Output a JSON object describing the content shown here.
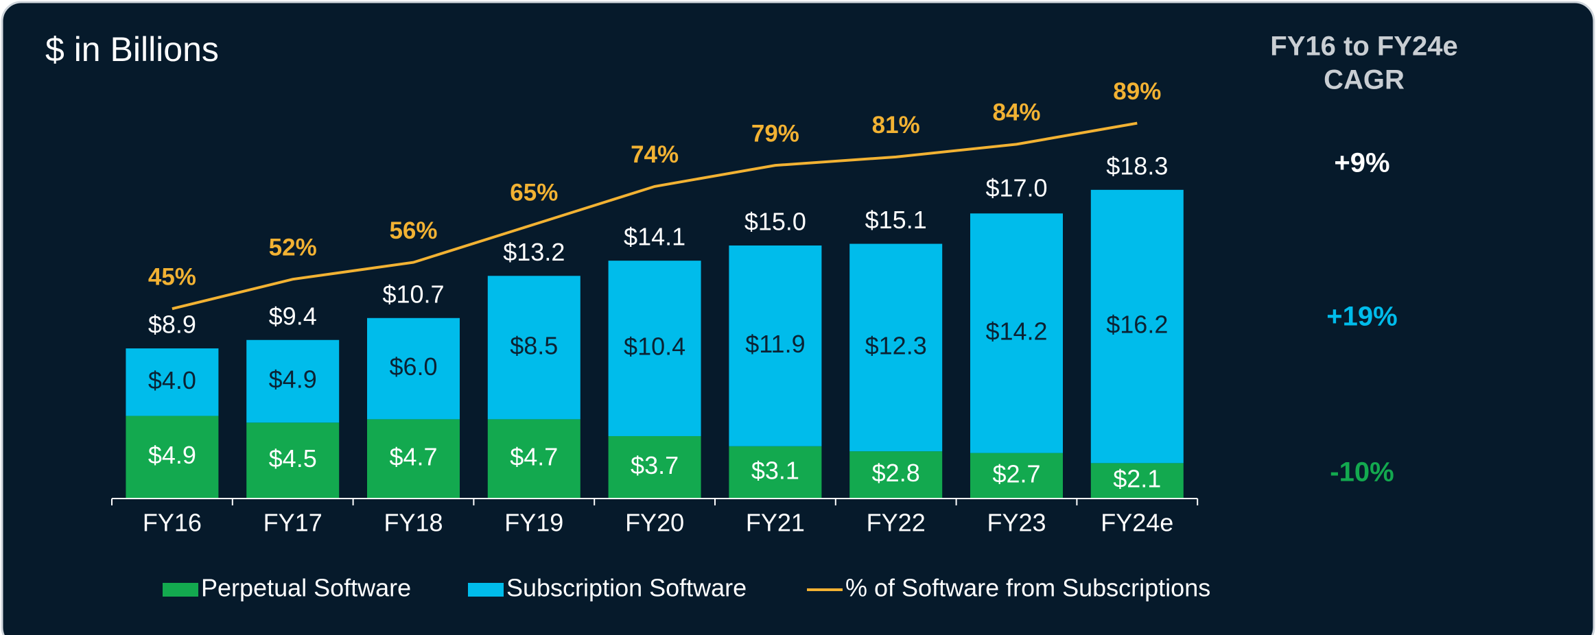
{
  "chart_data": {
    "type": "bar",
    "title": "$ in Billions",
    "categories": [
      "FY16",
      "FY17",
      "FY18",
      "FY19",
      "FY20",
      "FY21",
      "FY22",
      "FY23",
      "FY24e"
    ],
    "stacked": true,
    "ylim": [
      0,
      25
    ],
    "y2lim": [
      0,
      100
    ],
    "series": [
      {
        "name": "Perpetual Software",
        "color": "#13a94f",
        "values": [
          4.9,
          4.5,
          4.7,
          4.7,
          3.7,
          3.1,
          2.8,
          2.7,
          2.1
        ],
        "value_labels": [
          "$4.9",
          "$4.5",
          "$4.7",
          "$4.7",
          "$3.7",
          "$3.1",
          "$2.8",
          "$2.7",
          "$2.1"
        ]
      },
      {
        "name": "Subscription Software",
        "color": "#00bceb",
        "values": [
          4.0,
          4.9,
          6.0,
          8.5,
          10.4,
          11.9,
          12.3,
          14.2,
          16.2
        ],
        "value_labels": [
          "$4.0",
          "$4.9",
          "$6.0",
          "$8.5",
          "$10.4",
          "$11.9",
          "$12.3",
          "$14.2",
          "$16.2"
        ]
      },
      {
        "name": "% of Software from Subscriptions",
        "type": "line",
        "axis": "y2",
        "color": "#f2b233",
        "values": [
          45,
          52,
          56,
          65,
          74,
          79,
          81,
          84,
          89
        ],
        "value_labels": [
          "45%",
          "52%",
          "56%",
          "65%",
          "74%",
          "79%",
          "81%",
          "84%",
          "89%"
        ]
      }
    ],
    "totals": {
      "values": [
        8.9,
        9.4,
        10.7,
        13.2,
        14.1,
        15.0,
        15.1,
        17.0,
        18.3
      ],
      "value_labels": [
        "$8.9",
        "$9.4",
        "$10.7",
        "$13.2",
        "$14.1",
        "$15.0",
        "$15.1",
        "$17.0",
        "$18.3"
      ]
    },
    "cagr": {
      "title": [
        "FY16 to FY24e",
        "CAGR"
      ],
      "items": [
        {
          "label": "+9%",
          "color": "#ffffff"
        },
        {
          "label": "+19%",
          "color": "#00bceb"
        },
        {
          "label": "-10%",
          "color": "#13a94f"
        }
      ]
    }
  }
}
